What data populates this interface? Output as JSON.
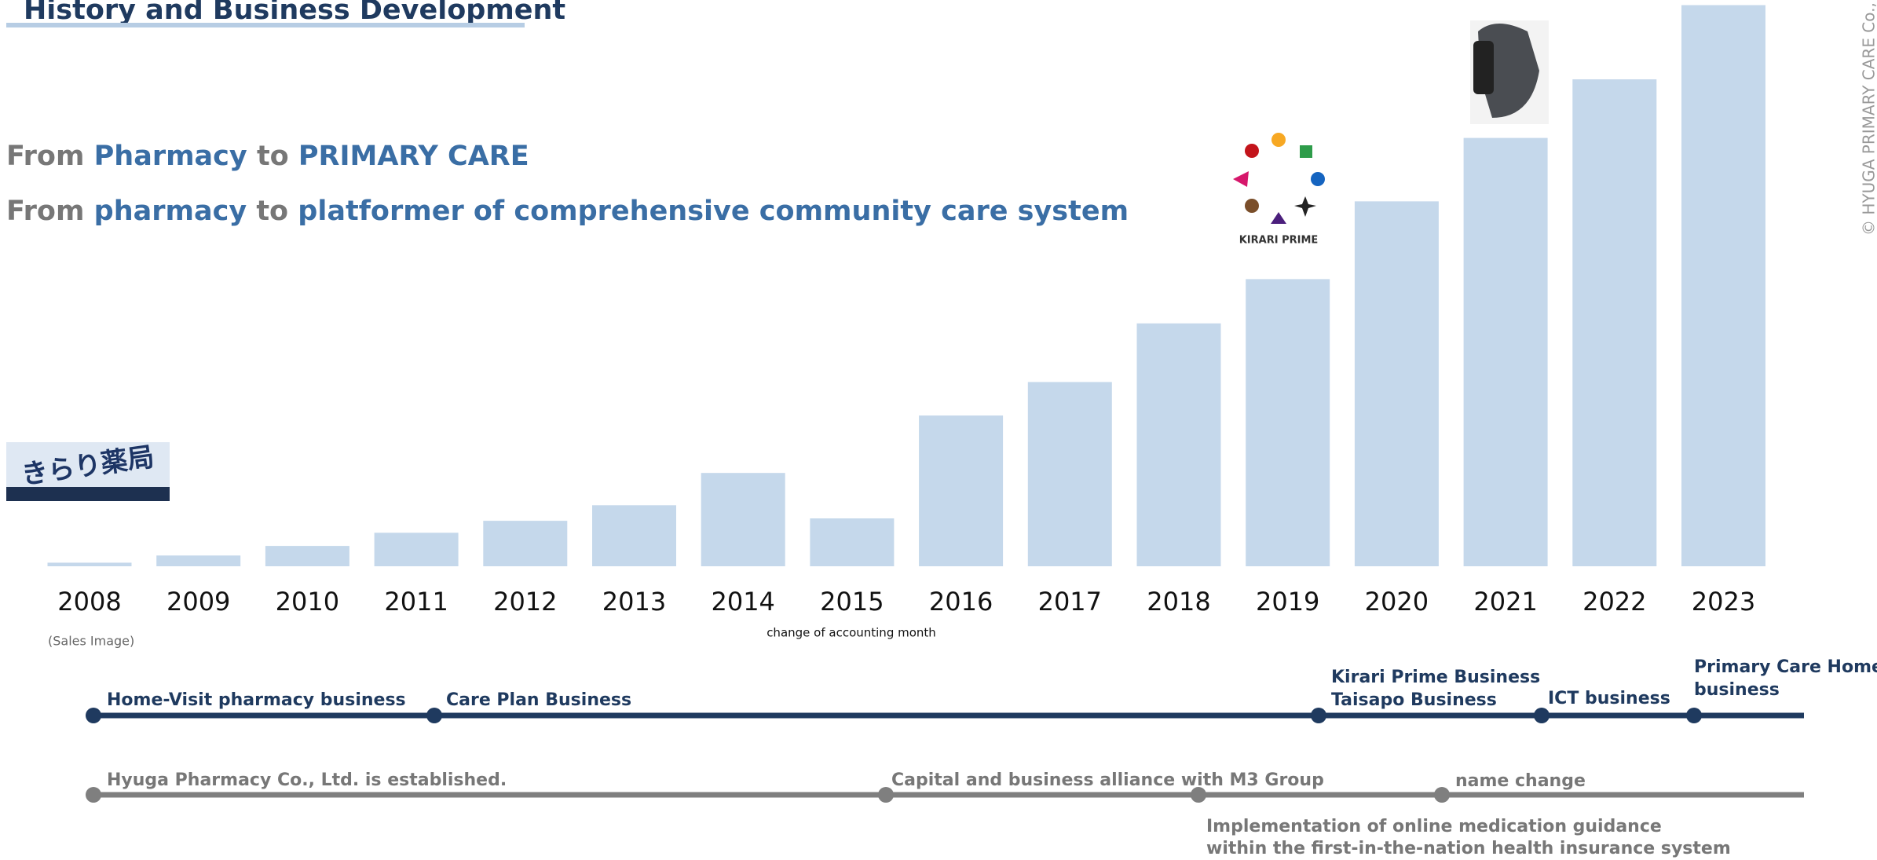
{
  "header": {
    "title": "History and Business Development"
  },
  "slogans": [
    [
      "From",
      "Pharmacy",
      "to",
      "PRIMARY CARE"
    ],
    [
      "From",
      "pharmacy",
      "to",
      "platformer of comprehensive community care system"
    ]
  ],
  "logos": {
    "pharmacy_sign": "きらり薬局",
    "kirari_prime": "KIRARI PRIME"
  },
  "chart_data": {
    "type": "bar",
    "categories": [
      "2008",
      "2009",
      "2010",
      "2011",
      "2012",
      "2013",
      "2014",
      "2015",
      "2016",
      "2017",
      "2018",
      "2019",
      "2020",
      "2021",
      "2022",
      "2023"
    ],
    "values": [
      3,
      9,
      17,
      28,
      38,
      51,
      78,
      40,
      126,
      154,
      203,
      240,
      305,
      358,
      407,
      469
    ],
    "color": "#c5d8eb",
    "ylim": [
      0,
      470
    ],
    "annotations": [
      "(Sales Image)",
      "change of accounting month"
    ]
  },
  "timeline": {
    "business": [
      [
        "Home-Visit pharmacy business"
      ],
      [
        "Care Plan Business"
      ],
      [
        "Kirari Prime Business",
        "Taisapo Business"
      ],
      [
        "ICT business"
      ],
      [
        "Primary Care Home",
        "business"
      ]
    ],
    "corporate": [
      [
        "Hyuga Pharmacy Co., Ltd. is established."
      ],
      [
        "Capital and business alliance with M3 Group"
      ],
      [
        "Implementation of online medication guidance",
        "within the first-in-the-nation health insurance system"
      ],
      [
        "name change"
      ]
    ]
  },
  "copyright": "© HYUGA PRIMARY CARE Co., Ltd."
}
